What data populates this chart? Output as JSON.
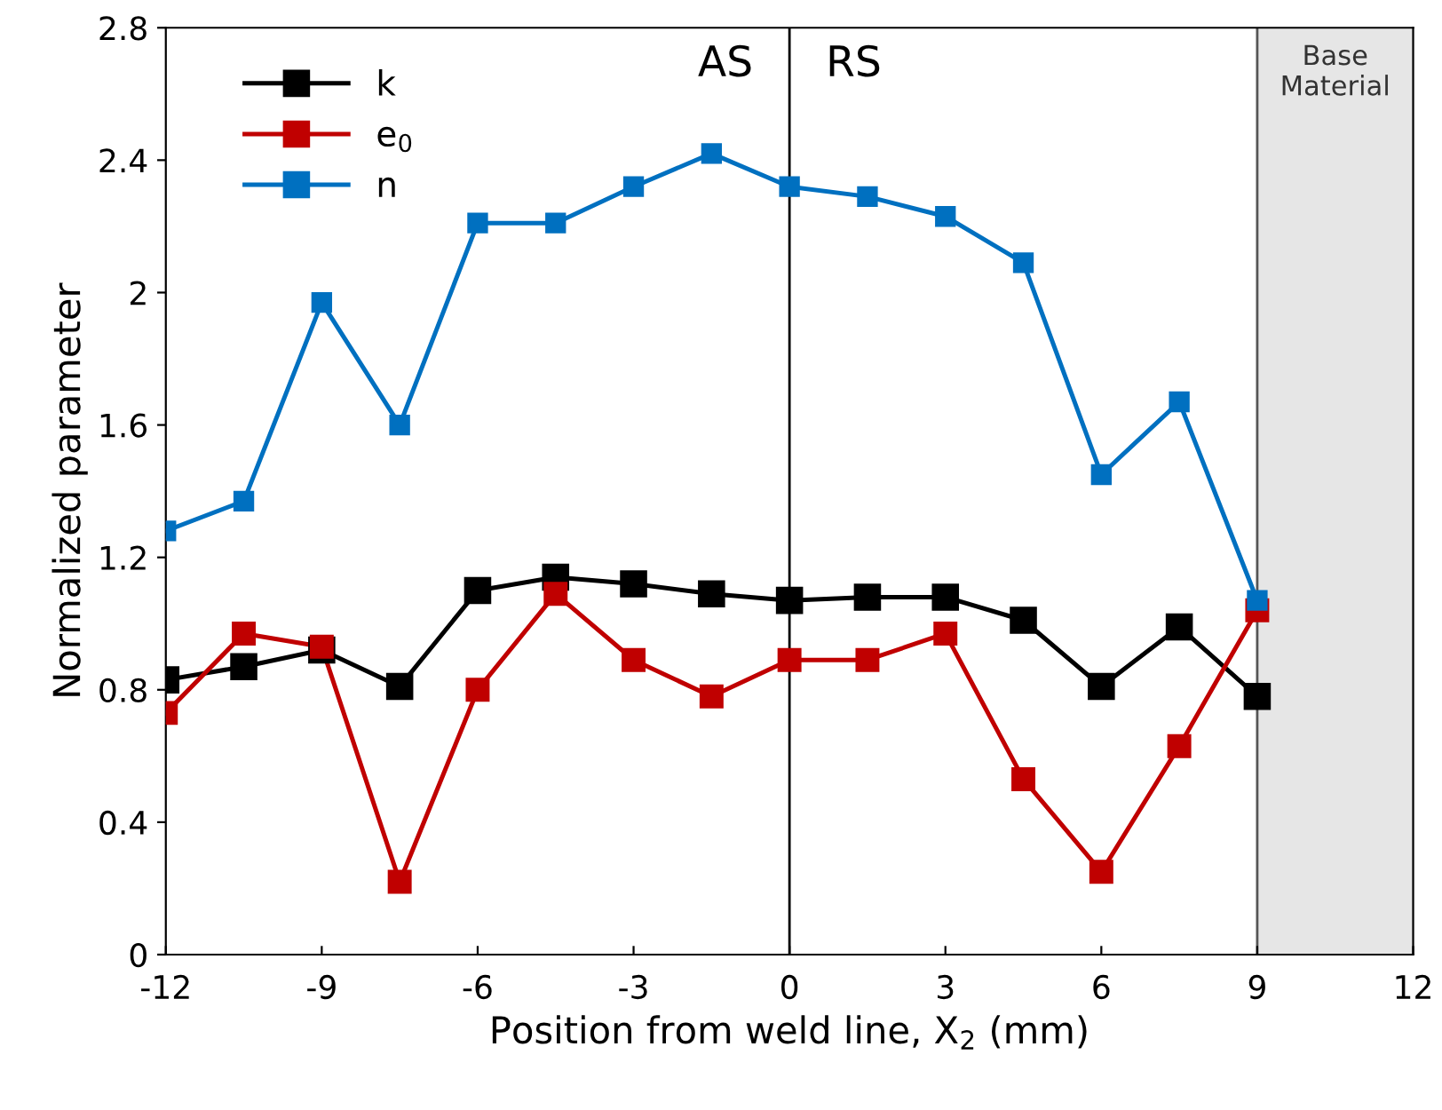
{
  "chart_data": {
    "type": "line",
    "xlabel": "Position from weld line, X$_{2}$ (mm)",
    "ylabel": "Normalized parameter",
    "x": [
      -12,
      -10.5,
      -9,
      -7.5,
      -6,
      -4.5,
      -3,
      -1.5,
      0,
      1.5,
      3,
      4.5,
      6,
      7.5,
      9
    ],
    "series": [
      {
        "name": "k",
        "color": "#000000",
        "values": [
          0.83,
          0.87,
          0.92,
          0.81,
          1.1,
          1.14,
          1.12,
          1.09,
          1.07,
          1.08,
          1.08,
          1.01,
          0.81,
          0.99,
          0.78
        ]
      },
      {
        "name": "e$_{0}$",
        "color": "#c00000",
        "values": [
          0.73,
          0.97,
          0.93,
          0.22,
          0.8,
          1.09,
          0.89,
          0.78,
          0.89,
          0.89,
          0.97,
          0.53,
          0.25,
          0.63,
          1.04
        ]
      },
      {
        "name": "n",
        "color": "#0070c0",
        "values": [
          1.28,
          1.37,
          1.97,
          1.6,
          2.21,
          2.21,
          2.32,
          2.42,
          2.32,
          2.29,
          2.23,
          2.09,
          1.45,
          1.67,
          1.07
        ]
      }
    ],
    "xlim": [
      -12,
      12
    ],
    "xticks": [
      -12,
      -9,
      -6,
      -3,
      0,
      3,
      6,
      9,
      12
    ],
    "ylim": [
      0,
      2.8
    ],
    "yticks": [
      0,
      0.4,
      0.8,
      1.2,
      1.6,
      2,
      2.4,
      2.8
    ],
    "ref_lines": [
      {
        "axis": "x",
        "value": 0,
        "color": "#000000"
      },
      {
        "axis": "x",
        "value": 9,
        "color": "#555555"
      }
    ],
    "bands": [
      {
        "axis": "x",
        "from": 9,
        "to": 12,
        "label": "Base\nMaterial",
        "color": "#e6e6e6"
      }
    ],
    "annotations": [
      "AS",
      "RS"
    ],
    "marker": "square",
    "line_style": "solid",
    "grid": false,
    "legend": "top left"
  }
}
